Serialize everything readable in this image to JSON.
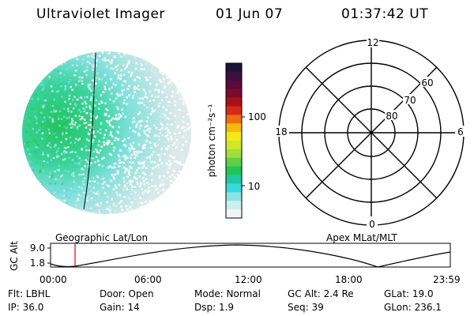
{
  "header": {
    "instrument": "Ultraviolet Imager",
    "date": "01 Jun 07",
    "time": "01:37:42 UT"
  },
  "colorbar": {
    "unit_label": "photon cm⁻²s⁻¹",
    "ticks": [
      "100",
      "10"
    ],
    "colors": [
      "#1a1535",
      "#3a1240",
      "#5a0a3c",
      "#7a0b2c",
      "#a8111a",
      "#d62a18",
      "#ee6e12",
      "#f7b810",
      "#f4e81a",
      "#cfe82a",
      "#9fe03a",
      "#5fd046",
      "#22c45a",
      "#22c8a0",
      "#38d8d8",
      "#8ae4e4",
      "#cfeeee",
      "#f0f4f4"
    ]
  },
  "polar": {
    "lat_labels": [
      "60",
      "70",
      "80"
    ],
    "mlt_labels": {
      "top": "12",
      "bottom": "0",
      "left": "18",
      "right": "6"
    }
  },
  "timeline": {
    "left_caption": "Geographic Lat/Lon",
    "right_caption": "Apex MLat/MLT",
    "axis_label": "GC Alt",
    "y_ticks": [
      "9.0",
      "1.8"
    ],
    "x_ticks": [
      "00:00",
      "06:00",
      "12:00",
      "18:00",
      "23:59"
    ]
  },
  "info": {
    "row1": [
      "Flt: LBHL",
      "Door: Open",
      "Mode: Normal",
      "GC Alt: 2.4 Re",
      "GLat: 19.0"
    ],
    "row2": [
      "IP: 36.0",
      "Gain: 14",
      "Dsp:    1.9",
      "Seq: 39",
      "GLon: 236.1"
    ]
  }
}
